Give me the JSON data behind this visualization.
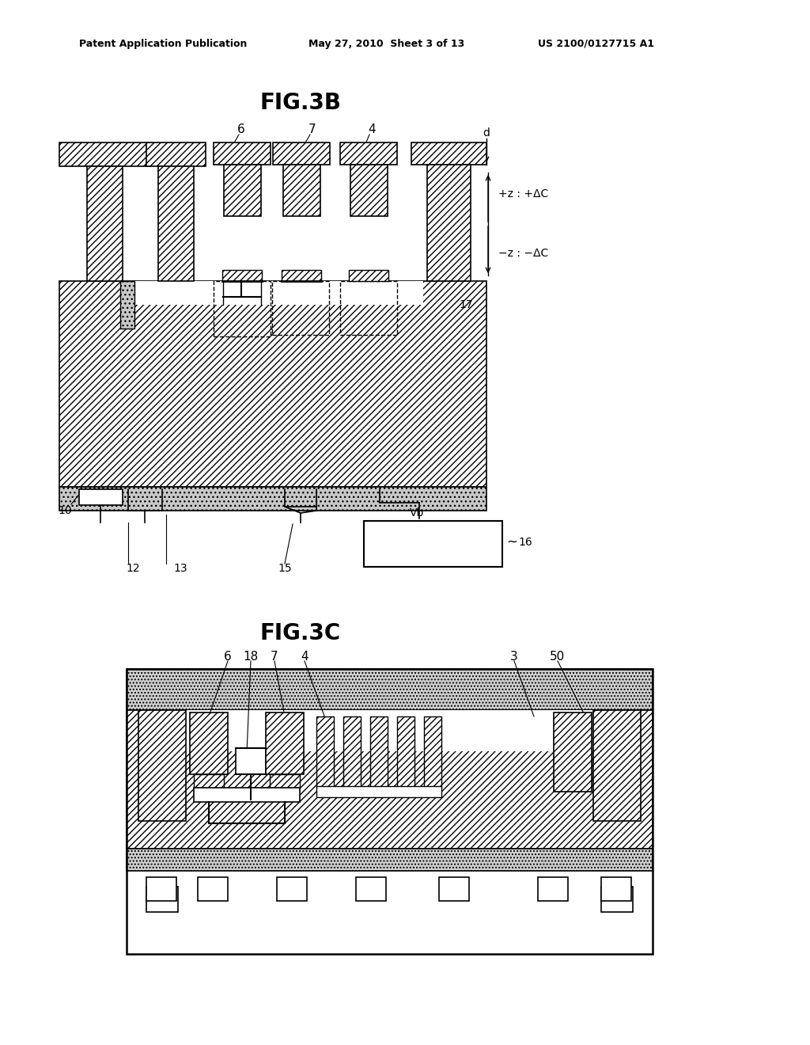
{
  "background_color": "#ffffff",
  "header_left": "Patent Application Publication",
  "header_center": "May 27, 2010  Sheet 3 of 13",
  "header_right": "US 2100/0127715 A1",
  "fig3b_title": "FIG.3B",
  "fig3c_title": "FIG.3C"
}
